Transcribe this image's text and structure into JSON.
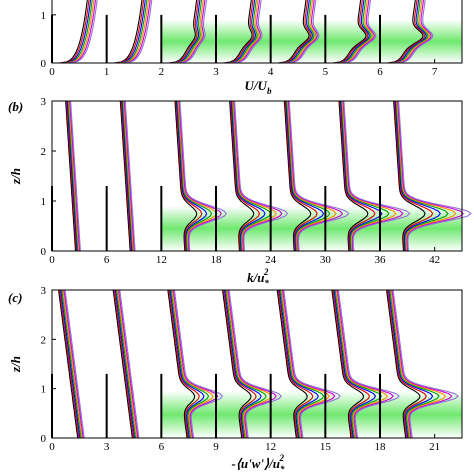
{
  "chart_data": [
    {
      "type": "line",
      "panel_label": "",
      "xlabel": "U/U_b",
      "xlabel_main": "U/U",
      "xlabel_sub": "b",
      "ylabel": "",
      "xlim": [
        0,
        7.5
      ],
      "ylim": [
        0,
        1.35
      ],
      "xticks": [
        0,
        1,
        2,
        3,
        4,
        5,
        6,
        7
      ],
      "yticks": [
        0,
        1
      ],
      "profile_offsets": [
        0,
        1,
        2,
        3,
        4,
        5,
        6
      ],
      "vegetation_region": {
        "x": [
          2,
          7.5
        ],
        "z": [
          0,
          0.9
        ]
      },
      "series_colors": [
        "#000000",
        "#e00000",
        "#0000ff",
        "#00a000",
        "#ff8c00",
        "#cc00cc",
        "#9370db"
      ]
    },
    {
      "type": "line",
      "panel_label": "(b)",
      "xlabel": "k/u_*^2",
      "xlabel_main": "k/u",
      "xlabel_sub": "*",
      "xlabel_sup": "2",
      "ylabel": "z/h",
      "xlim": [
        0,
        45
      ],
      "ylim": [
        0,
        3
      ],
      "xticks": [
        0,
        6,
        12,
        18,
        24,
        30,
        36,
        42
      ],
      "yticks": [
        0,
        1,
        2,
        3
      ],
      "profile_offsets": [
        0,
        6,
        12,
        18,
        24,
        30,
        36
      ],
      "vegetation_region": {
        "x": [
          12,
          45
        ],
        "z": [
          0,
          0.9
        ]
      },
      "series_colors": [
        "#000000",
        "#e00000",
        "#0000ff",
        "#00a000",
        "#ff8c00",
        "#cc00cc",
        "#9370db"
      ]
    },
    {
      "type": "line",
      "panel_label": "(c)",
      "xlabel": "-⟨u'w'⟩/u_*^2",
      "xlabel_main": "-⟨u'w'⟩/u",
      "xlabel_sub": "*",
      "xlabel_sup": "2",
      "ylabel": "z/h",
      "xlim": [
        0,
        22.5
      ],
      "ylim": [
        0,
        3
      ],
      "xticks": [
        0,
        3,
        6,
        9,
        12,
        15,
        18,
        21
      ],
      "yticks": [
        0,
        1,
        2,
        3
      ],
      "profile_offsets": [
        0,
        3,
        6,
        9,
        12,
        15,
        18
      ],
      "vegetation_region": {
        "x": [
          6,
          22.5
        ],
        "z": [
          0,
          0.95
        ]
      },
      "series_colors": [
        "#000000",
        "#e00000",
        "#0000ff",
        "#00a000",
        "#ff8c00",
        "#cc00cc",
        "#9370db"
      ]
    }
  ]
}
